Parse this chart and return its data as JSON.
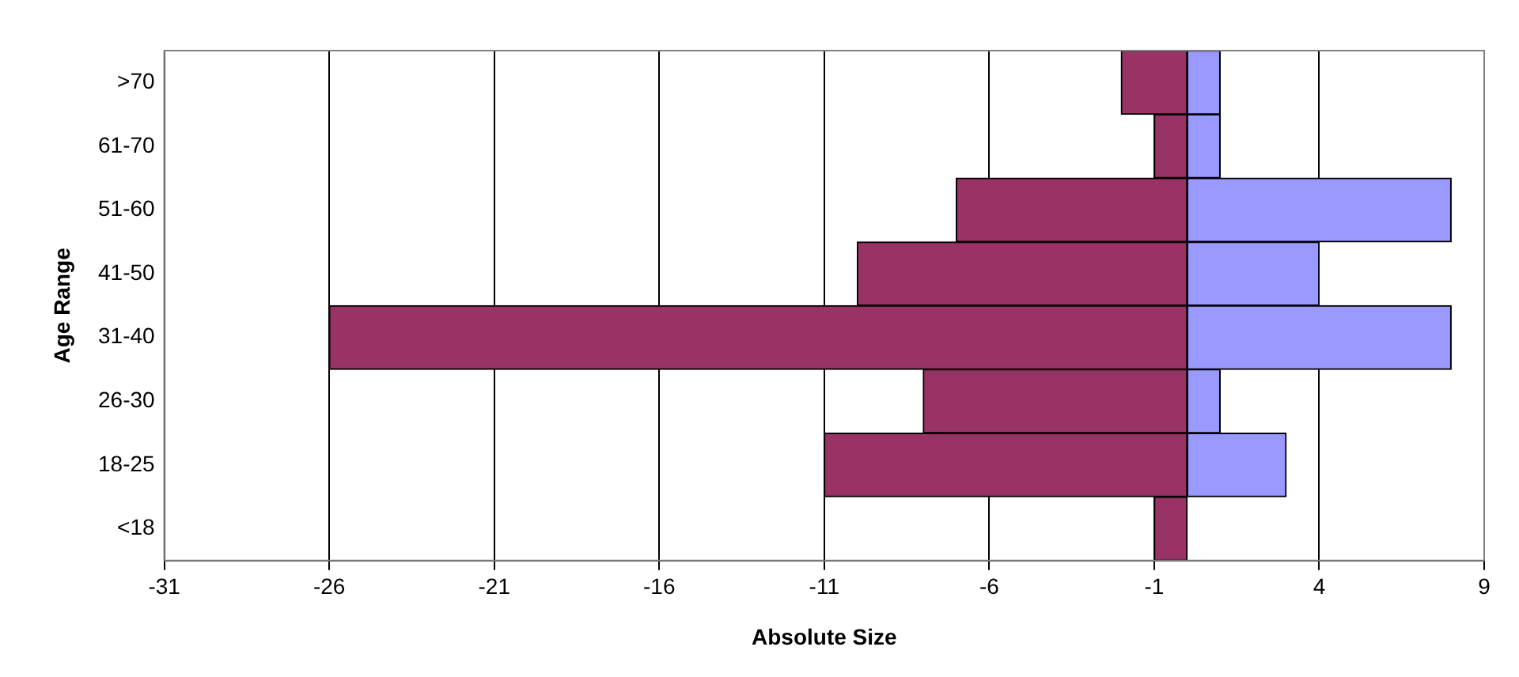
{
  "chart_data": {
    "type": "bar",
    "orientation": "horizontal",
    "stacked": true,
    "xlabel": "Absolute Size",
    "ylabel": "Age Range",
    "categories": [
      ">70",
      "61-70",
      "51-60",
      "41-50",
      "31-40",
      "26-30",
      "18-25",
      "<18"
    ],
    "series": [
      {
        "color": "#993366",
        "values": [
          -2,
          -1,
          -7,
          -10,
          -26,
          -8,
          -11,
          -1
        ]
      },
      {
        "color": "#9999ff",
        "values": [
          1,
          1,
          8,
          4,
          8,
          1,
          3,
          0
        ]
      }
    ],
    "xlim": [
      -31,
      9
    ],
    "xticks": [
      -31,
      -26,
      -21,
      -16,
      -11,
      -6,
      -1,
      4,
      9
    ],
    "grid": "x",
    "legend": false
  }
}
